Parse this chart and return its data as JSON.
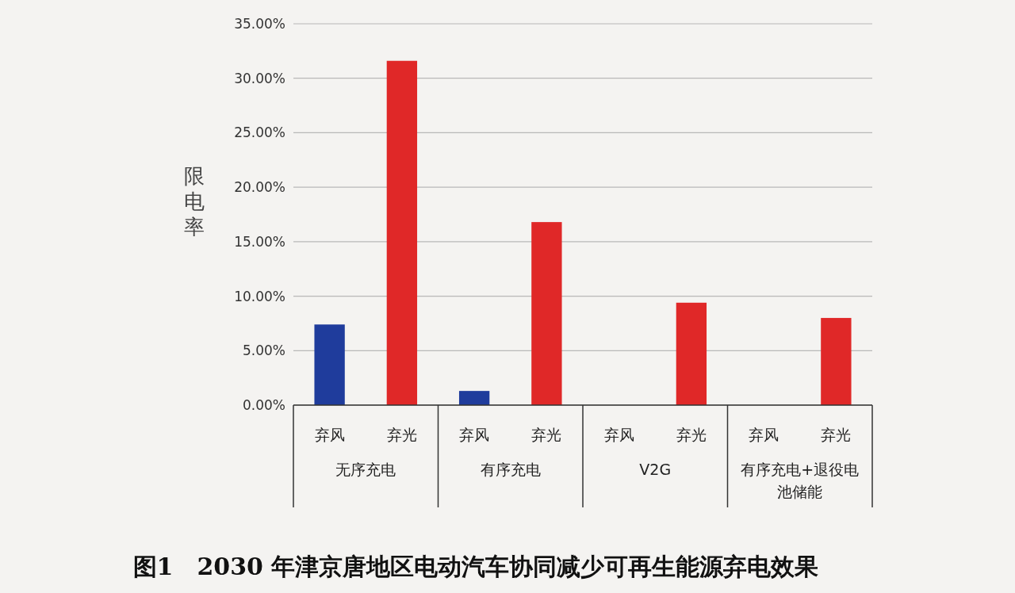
{
  "chart_data": {
    "type": "bar",
    "title": "图1　2030 年津京唐地区电动汽车协同减少可再生能源弃电效果",
    "ylabel": "限电率",
    "categories": [
      "弃风",
      "弃光",
      "弃风",
      "弃光",
      "弃风",
      "弃光",
      "弃风",
      "弃光"
    ],
    "values": [
      7.4,
      31.6,
      1.3,
      16.8,
      0,
      9.4,
      0,
      8.0
    ],
    "colors": [
      "#1f3c9c",
      "#e02828",
      "#1f3c9c",
      "#e02828",
      "#1f3c9c",
      "#e02828",
      "#1f3c9c",
      "#e02828"
    ],
    "annotations": [
      "无序充电",
      "有序充电",
      "V2G",
      "有序充电+退役电池储能"
    ],
    "ylim": [
      0,
      35
    ],
    "yticks": [
      {
        "value": 0,
        "label": "0.00%"
      },
      {
        "value": 5,
        "label": "5.00%"
      },
      {
        "value": 10,
        "label": "10.00%"
      },
      {
        "value": 15,
        "label": "15.00%"
      },
      {
        "value": 20,
        "label": "20.00%"
      },
      {
        "value": 25,
        "label": "25.00%"
      },
      {
        "value": 30,
        "label": "30.00%"
      },
      {
        "value": 35,
        "label": "35.00%"
      }
    ],
    "grid": "y"
  }
}
